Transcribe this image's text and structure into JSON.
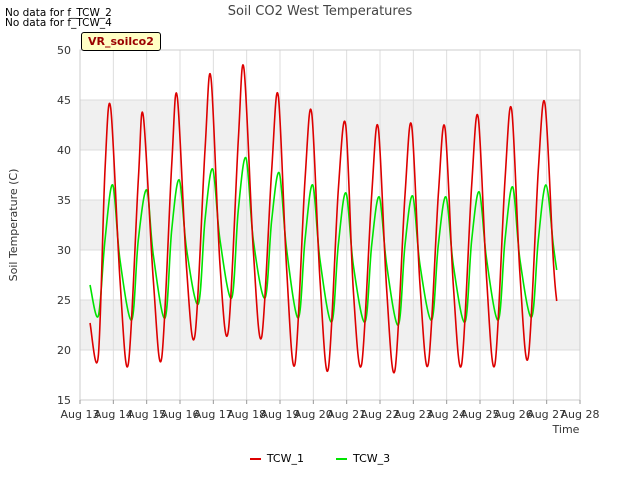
{
  "no_data_notes": [
    "No data for f_TCW_2",
    "No data for f_TCW_4"
  ],
  "station_tag": "VR_soilco2",
  "colors": {
    "TCW_1": "#dd0000",
    "TCW_3": "#00e400",
    "band": "#f0f0f0",
    "grid": "#dddddd"
  },
  "chart_data": {
    "type": "line",
    "title": "Soil CO2 West Temperatures",
    "xlabel": "Time",
    "ylabel": "Soil Temperature (C)",
    "ylim": [
      15,
      50
    ],
    "xlim": [
      "Aug 13",
      "Aug 28"
    ],
    "yticks": [
      15,
      20,
      25,
      30,
      35,
      40,
      45,
      50
    ],
    "xticks": [
      "Aug 13",
      "Aug 14",
      "Aug 15",
      "Aug 16",
      "Aug 17",
      "Aug 18",
      "Aug 19",
      "Aug 20",
      "Aug 21",
      "Aug 22",
      "Aug 23",
      "Aug 24",
      "Aug 25",
      "Aug 26",
      "Aug 27",
      "Aug 28"
    ],
    "grid": true,
    "legend_position": "bottom-center",
    "x_unit": "days since Aug 13 00:00",
    "series": [
      {
        "name": "TCW_1",
        "color": "#dd0000",
        "x": [
          0.3,
          0.55,
          0.75,
          0.92,
          1.2,
          1.45,
          1.75,
          1.9,
          2.2,
          2.45,
          2.75,
          2.92,
          3.2,
          3.45,
          3.75,
          3.93,
          4.2,
          4.45,
          4.75,
          4.92,
          5.2,
          5.45,
          5.75,
          5.95,
          6.2,
          6.45,
          6.75,
          6.95,
          7.2,
          7.45,
          7.75,
          7.97,
          8.2,
          8.45,
          8.75,
          8.95,
          9.2,
          9.45,
          9.75,
          9.95,
          10.2,
          10.45,
          10.75,
          10.95,
          11.2,
          11.45,
          11.75,
          11.95,
          12.2,
          12.45,
          12.75,
          12.95,
          13.2,
          13.45,
          13.75,
          13.95,
          14.2,
          14.3
        ],
        "y": [
          22.7,
          19.4,
          38.0,
          44.2,
          27.0,
          18.6,
          37.0,
          43.4,
          27.0,
          19.2,
          38.5,
          45.3,
          28.0,
          21.5,
          40.0,
          47.2,
          28.5,
          21.9,
          41.0,
          48.1,
          30.0,
          21.3,
          38.0,
          45.4,
          28.0,
          18.6,
          37.0,
          43.7,
          27.0,
          18.1,
          36.0,
          42.5,
          26.0,
          18.6,
          35.5,
          42.2,
          26.0,
          18.0,
          35.5,
          42.4,
          26.5,
          18.6,
          35.5,
          42.2,
          26.5,
          18.6,
          36.5,
          43.2,
          27.0,
          18.6,
          37.0,
          44.0,
          27.5,
          19.3,
          38.0,
          44.6,
          29.0,
          24.9
        ]
      },
      {
        "name": "TCW_3",
        "color": "#00e400",
        "x": [
          0.3,
          0.55,
          0.75,
          0.98,
          1.2,
          1.55,
          1.75,
          2.0,
          2.2,
          2.55,
          2.75,
          2.98,
          3.2,
          3.55,
          3.75,
          3.98,
          4.2,
          4.55,
          4.75,
          4.98,
          5.2,
          5.55,
          5.75,
          5.98,
          6.2,
          6.55,
          6.75,
          6.98,
          7.2,
          7.55,
          7.75,
          7.98,
          8.2,
          8.55,
          8.75,
          8.98,
          9.2,
          9.55,
          9.75,
          9.98,
          10.2,
          10.55,
          10.75,
          10.98,
          11.2,
          11.55,
          11.75,
          11.98,
          12.2,
          12.55,
          12.75,
          12.98,
          13.2,
          13.55,
          13.75,
          13.98,
          14.2,
          14.3
        ],
        "y": [
          26.5,
          23.4,
          31.0,
          36.5,
          29.0,
          23.0,
          31.0,
          36.0,
          29.5,
          23.2,
          32.0,
          37.0,
          30.0,
          24.6,
          33.0,
          38.1,
          31.0,
          25.2,
          34.0,
          39.2,
          31.0,
          25.2,
          33.0,
          37.7,
          30.0,
          23.2,
          31.0,
          36.5,
          29.0,
          22.8,
          30.5,
          35.7,
          28.5,
          22.8,
          30.5,
          35.3,
          28.5,
          22.5,
          30.5,
          35.4,
          28.5,
          23.0,
          30.5,
          35.3,
          28.5,
          22.8,
          31.0,
          35.8,
          29.0,
          23.0,
          31.0,
          36.3,
          29.0,
          23.3,
          31.0,
          36.5,
          30.5,
          28.0
        ]
      }
    ]
  }
}
